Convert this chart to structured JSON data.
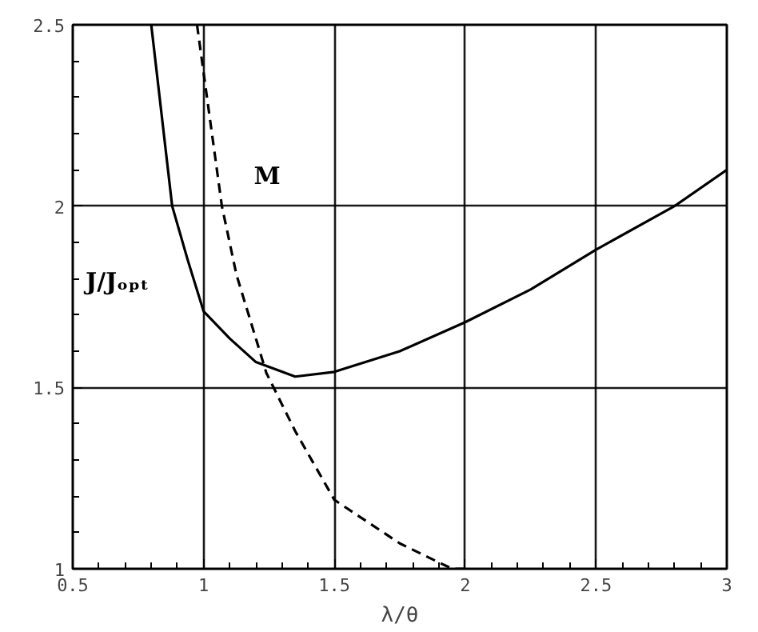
{
  "chart_data": {
    "type": "line",
    "xlabel": "λ/θ",
    "x": [
      0.8,
      0.88,
      0.94,
      1.0,
      1.1,
      1.2,
      1.35,
      1.5,
      1.75,
      2.0,
      2.25,
      2.5,
      2.8,
      3.0
    ],
    "series": [
      {
        "name": "J/Jₒₚₜ",
        "color": "#000000",
        "line_style": "solid",
        "values": [
          2.5,
          2.0,
          1.85,
          1.71,
          1.635,
          1.57,
          1.53,
          1.543,
          1.6,
          1.68,
          1.77,
          1.88,
          2.0,
          2.1
        ]
      },
      {
        "name": "M",
        "color": "#000000",
        "line_style": "dashed",
        "x": [
          0.975,
          1.07,
          1.126,
          1.24,
          1.35,
          1.5,
          1.75,
          1.95,
          2.0
        ],
        "values": [
          2.5,
          2.0,
          1.81,
          1.54,
          1.38,
          1.19,
          1.07,
          1.0,
          1.0
        ]
      }
    ],
    "xlim": [
      0.5,
      3
    ],
    "ylim": [
      1,
      2.5
    ],
    "xticks": [
      0.5,
      1,
      1.5,
      2,
      2.5,
      3
    ],
    "yticks": [
      1,
      1.5,
      2,
      2.5
    ],
    "grid": true
  }
}
